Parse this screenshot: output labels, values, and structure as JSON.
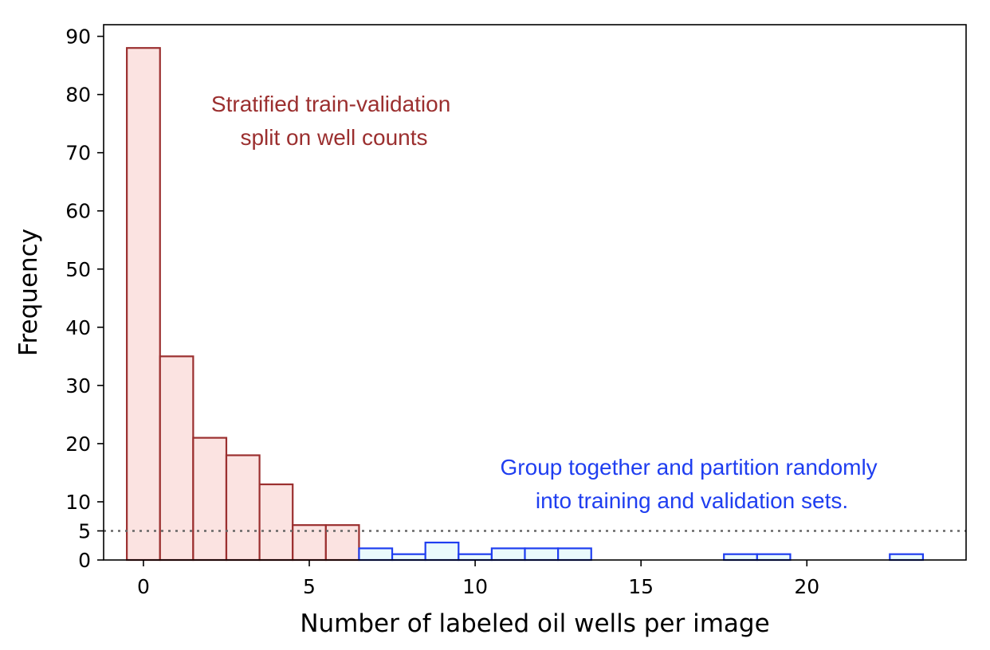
{
  "chart_data": {
    "type": "bar",
    "title": "",
    "xlabel": "Number of labeled oil wells per image",
    "ylabel": "Frequency",
    "xlim": [
      -1.2,
      24.8
    ],
    "ylim": [
      0,
      92
    ],
    "xticks": [
      0,
      5,
      10,
      15,
      20
    ],
    "yticks": [
      0,
      5,
      10,
      20,
      30,
      40,
      50,
      60,
      70,
      80,
      90
    ],
    "grid": false,
    "bin_width": 1,
    "reference_line": {
      "y": 5,
      "style": "dotted"
    },
    "series": [
      {
        "group": "stratified",
        "color": "#9b2f2f",
        "fill": "#fbe3e1",
        "x": [
          0,
          1,
          2,
          3,
          4,
          5,
          6
        ],
        "values": [
          88,
          35,
          21,
          18,
          13,
          6,
          6
        ]
      },
      {
        "group": "grouped",
        "color": "#1f3ef0",
        "fill": "#eafafc",
        "x": [
          7,
          8,
          9,
          10,
          11,
          12,
          13,
          14,
          15,
          16,
          17,
          18,
          19,
          20,
          21,
          22,
          23
        ],
        "values": [
          2,
          1,
          3,
          1,
          2,
          2,
          2,
          0,
          0,
          0,
          0,
          1,
          1,
          0,
          0,
          0,
          1
        ]
      }
    ],
    "annotations": [
      {
        "lines": [
          "Stratified train-validation",
          "split on well counts"
        ],
        "color": "#9b2f2f"
      },
      {
        "lines": [
          "Group together and partition randomly",
          "into training and validation sets."
        ],
        "color": "#1f3ef0"
      }
    ]
  }
}
